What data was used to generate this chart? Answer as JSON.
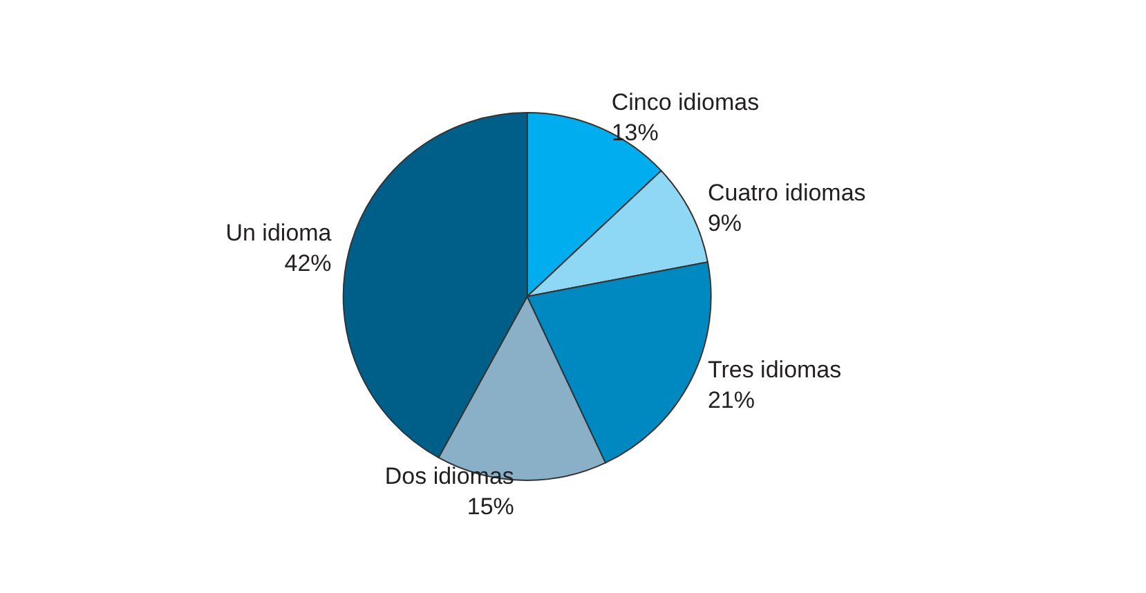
{
  "chart_data": {
    "type": "pie",
    "categories": [
      "Cinco idiomas",
      "Cuatro idiomas",
      "Tres idiomas",
      "Dos idiomas",
      "Un idioma"
    ],
    "values": [
      13,
      9,
      21,
      15,
      42
    ],
    "value_labels": [
      "13%",
      "9%",
      "21%",
      "15%",
      "42%"
    ],
    "colors": [
      "#00aeef",
      "#8fd8f5",
      "#0088c0",
      "#8ab0c8",
      "#005f88"
    ],
    "legend": false
  }
}
